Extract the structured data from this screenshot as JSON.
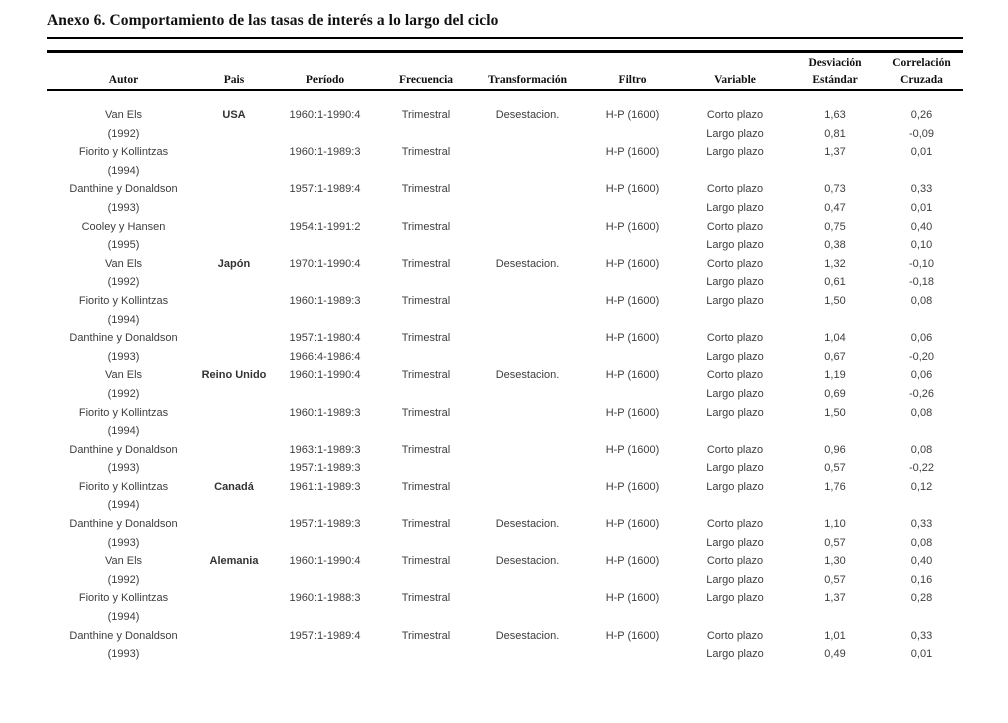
{
  "title": "Anexo 6. Comportamiento de las tasas de interés a lo largo del ciclo",
  "colors": {
    "background": "#ffffff",
    "heading_text": "#111111",
    "body_text": "#3e3e3e",
    "rule": "#000000"
  },
  "table": {
    "header_top": [
      "",
      "",
      "",
      "",
      "",
      "",
      "",
      "Desviación",
      "Correlación"
    ],
    "header_bottom": [
      "Autor",
      "Pais",
      "Período",
      "Frecuencia",
      "Transformación",
      "Filtro",
      "Variable",
      "Estándar",
      "Cruzada"
    ],
    "bold_column_index": 1,
    "rows": [
      [
        "Van Els",
        "USA",
        "1960:1-1990:4",
        "Trimestral",
        "Desestacion.",
        "H-P (1600)",
        "Corto plazo",
        "1,63",
        "0,26"
      ],
      [
        "(1992)",
        "",
        "",
        "",
        "",
        "",
        "Largo plazo",
        "0,81",
        "-0,09"
      ],
      [
        "Fiorito y Kollintzas",
        "",
        "1960:1-1989:3",
        "Trimestral",
        "",
        "H-P (1600)",
        "Largo plazo",
        "1,37",
        "0,01"
      ],
      [
        "(1994)",
        "",
        "",
        "",
        "",
        "",
        "",
        "",
        ""
      ],
      [
        "Danthine y Donaldson",
        "",
        "1957:1-1989:4",
        "Trimestral",
        "",
        "H-P (1600)",
        "Corto plazo",
        "0,73",
        "0,33"
      ],
      [
        "(1993)",
        "",
        "",
        "",
        "",
        "",
        "Largo plazo",
        "0,47",
        "0,01"
      ],
      [
        "Cooley y Hansen",
        "",
        "1954:1-1991:2",
        "Trimestral",
        "",
        "H-P (1600)",
        "Corto plazo",
        "0,75",
        "0,40"
      ],
      [
        "(1995)",
        "",
        "",
        "",
        "",
        "",
        "Largo plazo",
        "0,38",
        "0,10"
      ],
      [
        "Van Els",
        "Japón",
        "1970:1-1990:4",
        "Trimestral",
        "Desestacion.",
        "H-P (1600)",
        "Corto plazo",
        "1,32",
        "-0,10"
      ],
      [
        "(1992)",
        "",
        "",
        "",
        "",
        "",
        "Largo plazo",
        "0,61",
        "-0,18"
      ],
      [
        "Fiorito y Kollintzas",
        "",
        "1960:1-1989:3",
        "Trimestral",
        "",
        "H-P (1600)",
        "Largo plazo",
        "1,50",
        "0,08"
      ],
      [
        "(1994)",
        "",
        "",
        "",
        "",
        "",
        "",
        "",
        ""
      ],
      [
        "Danthine y Donaldson",
        "",
        "1957:1-1980:4",
        "Trimestral",
        "",
        "H-P (1600)",
        "Corto plazo",
        "1,04",
        "0,06"
      ],
      [
        "(1993)",
        "",
        "1966:4-1986:4",
        "",
        "",
        "",
        "Largo plazo",
        "0,67",
        "-0,20"
      ],
      [
        "Van Els",
        "Reino Unido",
        "1960:1-1990:4",
        "Trimestral",
        "Desestacion.",
        "H-P (1600)",
        "Corto plazo",
        "1,19",
        "0,06"
      ],
      [
        "(1992)",
        "",
        "",
        "",
        "",
        "",
        "Largo plazo",
        "0,69",
        "-0,26"
      ],
      [
        "Fiorito y Kollintzas",
        "",
        "1960:1-1989:3",
        "Trimestral",
        "",
        "H-P (1600)",
        "Largo plazo",
        "1,50",
        "0,08"
      ],
      [
        "(1994)",
        "",
        "",
        "",
        "",
        "",
        "",
        "",
        ""
      ],
      [
        "Danthine y Donaldson",
        "",
        "1963:1-1989:3",
        "Trimestral",
        "",
        "H-P (1600)",
        "Corto plazo",
        "0,96",
        "0,08"
      ],
      [
        "(1993)",
        "",
        "1957:1-1989:3",
        "",
        "",
        "",
        "Largo plazo",
        "0,57",
        "-0,22"
      ],
      [
        "Fiorito y Kollintzas",
        "Canadá",
        "1961:1-1989:3",
        "Trimestral",
        "",
        "H-P (1600)",
        "Largo plazo",
        "1,76",
        "0,12"
      ],
      [
        "(1994)",
        "",
        "",
        "",
        "",
        "",
        "",
        "",
        ""
      ],
      [
        "Danthine y Donaldson",
        "",
        "1957:1-1989:3",
        "Trimestral",
        "Desestacion.",
        "H-P (1600)",
        "Corto plazo",
        "1,10",
        "0,33"
      ],
      [
        "(1993)",
        "",
        "",
        "",
        "",
        "",
        "Largo plazo",
        "0,57",
        "0,08"
      ],
      [
        "Van Els",
        "Alemania",
        "1960:1-1990:4",
        "Trimestral",
        "Desestacion.",
        "H-P (1600)",
        "Corto plazo",
        "1,30",
        "0,40"
      ],
      [
        "(1992)",
        "",
        "",
        "",
        "",
        "",
        "Largo plazo",
        "0,57",
        "0,16"
      ],
      [
        "Fiorito y Kollintzas",
        "",
        "1960:1-1988:3",
        "Trimestral",
        "",
        "H-P (1600)",
        "Largo plazo",
        "1,37",
        "0,28"
      ],
      [
        "(1994)",
        "",
        "",
        "",
        "",
        "",
        "",
        "",
        ""
      ],
      [
        "Danthine y Donaldson",
        "",
        "1957:1-1989:4",
        "Trimestral",
        "Desestacion.",
        "H-P (1600)",
        "Corto plazo",
        "1,01",
        "0,33"
      ],
      [
        "(1993)",
        "",
        "",
        "",
        "",
        "",
        "Largo plazo",
        "0,49",
        "0,01"
      ]
    ]
  }
}
